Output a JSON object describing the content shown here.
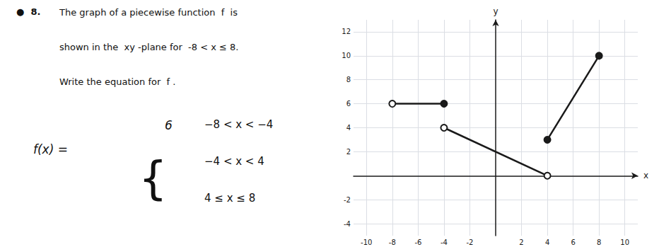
{
  "chart_data": {
    "type": "line",
    "annotations": [
      "●  8.",
      "The graph of a piecewise function  f  is",
      "shown in the  xy -plane for  -8 < x ≤ 8.",
      "Write the equation for  f .",
      "f(x) =",
      "{",
      "6",
      "−8 < x < −4",
      "−4 < x < 4",
      "4 ≤ x ≤ 8"
    ],
    "xlabel": "x",
    "ylabel": "y",
    "xlim": [
      -11,
      11
    ],
    "ylim": [
      -5,
      13
    ],
    "xticks": [
      -10,
      -8,
      -6,
      -4,
      -2,
      2,
      4,
      6,
      8,
      10
    ],
    "yticks": [
      -4,
      -2,
      2,
      4,
      6,
      8,
      10,
      12
    ],
    "grid": true,
    "color": "#1a1a1a",
    "series": [
      {
        "type": "line",
        "x": [
          -8,
          -4
        ],
        "values": [
          6,
          6
        ]
      },
      {
        "type": "line",
        "x": [
          -4,
          4
        ],
        "values": [
          4,
          0
        ]
      },
      {
        "type": "line",
        "x": [
          4,
          8
        ],
        "values": [
          3,
          10
        ]
      },
      {
        "type": "scatter",
        "marker": "open",
        "x": [
          -8,
          -4,
          4
        ],
        "values": [
          6,
          4,
          0
        ]
      },
      {
        "type": "scatter",
        "marker": "filled",
        "x": [
          -4,
          4,
          8
        ],
        "values": [
          6,
          3,
          10
        ]
      }
    ]
  }
}
